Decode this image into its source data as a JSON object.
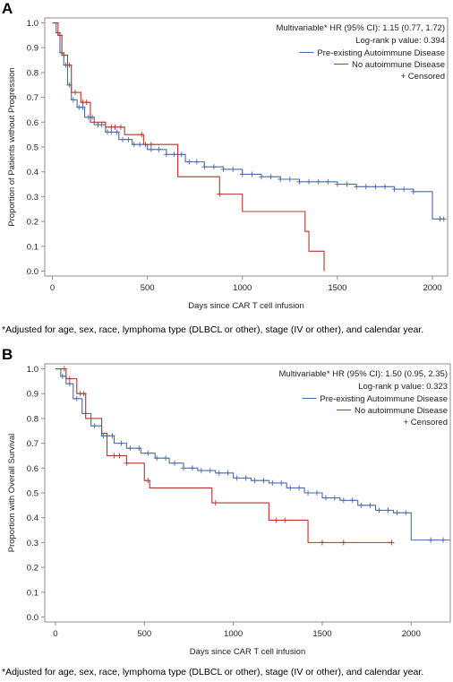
{
  "chart_data": [
    {
      "panel_label": "A",
      "type": "line",
      "xlabel": "Days since CAR T cell infusion",
      "ylabel": "Proportion of Patients without Progression",
      "xlim": [
        -40,
        2080
      ],
      "ylim": [
        -0.02,
        1.02
      ],
      "x_ticks": [
        0,
        500,
        1000,
        1500,
        2000
      ],
      "y_ticks": [
        "0.0",
        "0.1",
        "0.2",
        "0.3",
        "0.4",
        "0.5",
        "0.6",
        "0.7",
        "0.8",
        "0.9",
        "1.0"
      ],
      "grid": false,
      "annotations": [
        "Multivariable* HR (95% CI): 1.15 (0.77, 1.72)",
        "Log-rank p value: 0.394"
      ],
      "legend": {
        "position": "top-right",
        "censored_label": "+ Censored"
      },
      "series": [
        {
          "name": "Pre-existing Autoimmune Disease",
          "color": "#4a6aa8",
          "x": [
            0,
            20,
            40,
            60,
            80,
            100,
            130,
            170,
            220,
            280,
            350,
            420,
            500,
            600,
            700,
            800,
            900,
            1000,
            1100,
            1200,
            1300,
            1400,
            1500,
            1600,
            1700,
            1800,
            1900,
            2000,
            2060
          ],
          "y": [
            1.0,
            0.96,
            0.88,
            0.83,
            0.75,
            0.69,
            0.66,
            0.62,
            0.59,
            0.56,
            0.53,
            0.51,
            0.49,
            0.47,
            0.44,
            0.42,
            0.41,
            0.39,
            0.38,
            0.37,
            0.36,
            0.36,
            0.35,
            0.34,
            0.34,
            0.33,
            0.32,
            0.21,
            0.21
          ],
          "censored_x": [
            30,
            50,
            70,
            90,
            110,
            140,
            160,
            190,
            210,
            240,
            260,
            290,
            310,
            340,
            370,
            400,
            430,
            460,
            490,
            520,
            560,
            600,
            640,
            680,
            720,
            760,
            800,
            850,
            900,
            950,
            1000,
            1050,
            1100,
            1150,
            1200,
            1250,
            1300,
            1350,
            1400,
            1450,
            1500,
            1550,
            1600,
            1650,
            1700,
            1750,
            1800,
            1850,
            1900,
            2040,
            2060
          ]
        },
        {
          "name": "No autoimmune Disease",
          "color": "#b5342c",
          "x": [
            0,
            30,
            50,
            80,
            100,
            150,
            200,
            280,
            380,
            480,
            580,
            660,
            880,
            1000,
            1330,
            1350,
            1430
          ],
          "y": [
            1.0,
            0.95,
            0.87,
            0.83,
            0.72,
            0.68,
            0.6,
            0.58,
            0.55,
            0.51,
            0.51,
            0.38,
            0.31,
            0.24,
            0.16,
            0.08,
            0.0
          ],
          "censored_x": [
            40,
            60,
            90,
            120,
            160,
            180,
            310,
            330,
            360,
            470,
            520,
            880
          ]
        }
      ]
    },
    {
      "panel_label": "B",
      "type": "line",
      "xlabel": "Days since CAR T cell infusion",
      "ylabel": "Proportion with Overall Survival",
      "xlim": [
        -60,
        2220
      ],
      "ylim": [
        -0.02,
        1.02
      ],
      "x_ticks": [
        0,
        500,
        1000,
        1500,
        2000
      ],
      "y_ticks": [
        "0.0",
        "0.1",
        "0.2",
        "0.3",
        "0.4",
        "0.5",
        "0.6",
        "0.7",
        "0.8",
        "0.9",
        "1.0"
      ],
      "grid": false,
      "annotations": [
        "Multivariable* HR (95% CI): 1.50 (0.95, 2.35)",
        "Log-rank p value: 0.323"
      ],
      "legend": {
        "position": "top-right",
        "censored_label": "+ Censored"
      },
      "series": [
        {
          "name": "Pre-existing Autoimmune Disease",
          "color": "#4a6aa8",
          "x": [
            0,
            30,
            60,
            100,
            150,
            200,
            260,
            330,
            400,
            480,
            560,
            640,
            720,
            800,
            900,
            1000,
            1100,
            1200,
            1300,
            1400,
            1500,
            1600,
            1700,
            1800,
            1900,
            2000,
            2060,
            2220
          ],
          "y": [
            1.0,
            0.97,
            0.94,
            0.88,
            0.82,
            0.77,
            0.73,
            0.7,
            0.68,
            0.66,
            0.64,
            0.62,
            0.6,
            0.59,
            0.58,
            0.56,
            0.55,
            0.54,
            0.52,
            0.5,
            0.48,
            0.47,
            0.45,
            0.43,
            0.42,
            0.31,
            0.31,
            0.31
          ],
          "censored_x": [
            40,
            80,
            120,
            170,
            220,
            270,
            320,
            370,
            420,
            470,
            520,
            570,
            620,
            670,
            720,
            770,
            820,
            870,
            920,
            970,
            1020,
            1070,
            1120,
            1170,
            1220,
            1270,
            1320,
            1370,
            1420,
            1470,
            1520,
            1570,
            1620,
            1670,
            1720,
            1770,
            1820,
            1870,
            1920,
            1970,
            2110,
            2180
          ]
        },
        {
          "name": "No autoimmune Disease",
          "color": "#b5342c",
          "x": [
            0,
            60,
            120,
            170,
            260,
            290,
            400,
            500,
            530,
            880,
            1200,
            1420,
            1500,
            1890
          ],
          "y": [
            1.0,
            0.96,
            0.9,
            0.8,
            0.74,
            0.65,
            0.62,
            0.55,
            0.52,
            0.46,
            0.39,
            0.3,
            0.3,
            0.3
          ],
          "censored_x": [
            50,
            80,
            140,
            160,
            330,
            360,
            400,
            520,
            900,
            1240,
            1290,
            1500,
            1620,
            1890
          ]
        }
      ]
    }
  ],
  "footnotes": [
    "*Adjusted for age, sex, race, lymphoma type (DLBCL or other), stage (IV or other), and calendar year.",
    "*Adjusted for age, sex, race, lymphoma type (DLBCL or other), stage (IV or other), and calendar year."
  ]
}
